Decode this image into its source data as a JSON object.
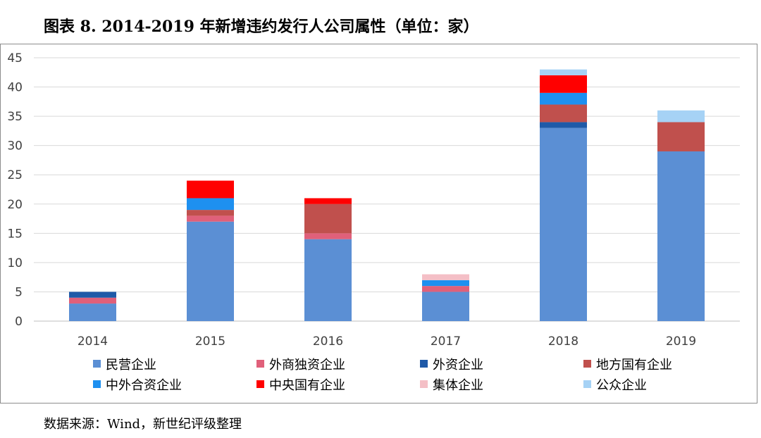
{
  "title": "图表 8. 2014-2019 年新增违约发行人公司属性（单位：家）",
  "source": "数据来源：Wind，新世纪评级整理",
  "chart_data": {
    "type": "bar",
    "stacked": true,
    "categories": [
      "2014",
      "2015",
      "2016",
      "2017",
      "2018",
      "2019"
    ],
    "ylim": [
      0,
      45
    ],
    "yticks": [
      0,
      5,
      10,
      15,
      20,
      25,
      30,
      35,
      40,
      45
    ],
    "grid": true,
    "legend_position": "bottom",
    "series": [
      {
        "name": "民营企业",
        "color": "#5B8FD4",
        "values": [
          3,
          17,
          14,
          5,
          33,
          29
        ]
      },
      {
        "name": "外商独资企业",
        "color": "#E0607A",
        "values": [
          1,
          1,
          1,
          1,
          0,
          0
        ]
      },
      {
        "name": "外资企业",
        "color": "#1F5AA8",
        "values": [
          1,
          0,
          0,
          0,
          1,
          0
        ]
      },
      {
        "name": "地方国有企业",
        "color": "#C0504D",
        "values": [
          0,
          1,
          5,
          0,
          3,
          5
        ]
      },
      {
        "name": "中外合资企业",
        "color": "#1E90F0",
        "values": [
          0,
          2,
          0,
          1,
          2,
          0
        ]
      },
      {
        "name": "中央国有企业",
        "color": "#FF0000",
        "values": [
          0,
          3,
          1,
          0,
          3,
          0
        ]
      },
      {
        "name": "集体企业",
        "color": "#F4BFC6",
        "values": [
          0,
          0,
          0,
          1,
          0,
          0
        ]
      },
      {
        "name": "公众企业",
        "color": "#A6D2F5",
        "values": [
          0,
          0,
          0,
          0,
          1,
          2
        ]
      }
    ]
  }
}
